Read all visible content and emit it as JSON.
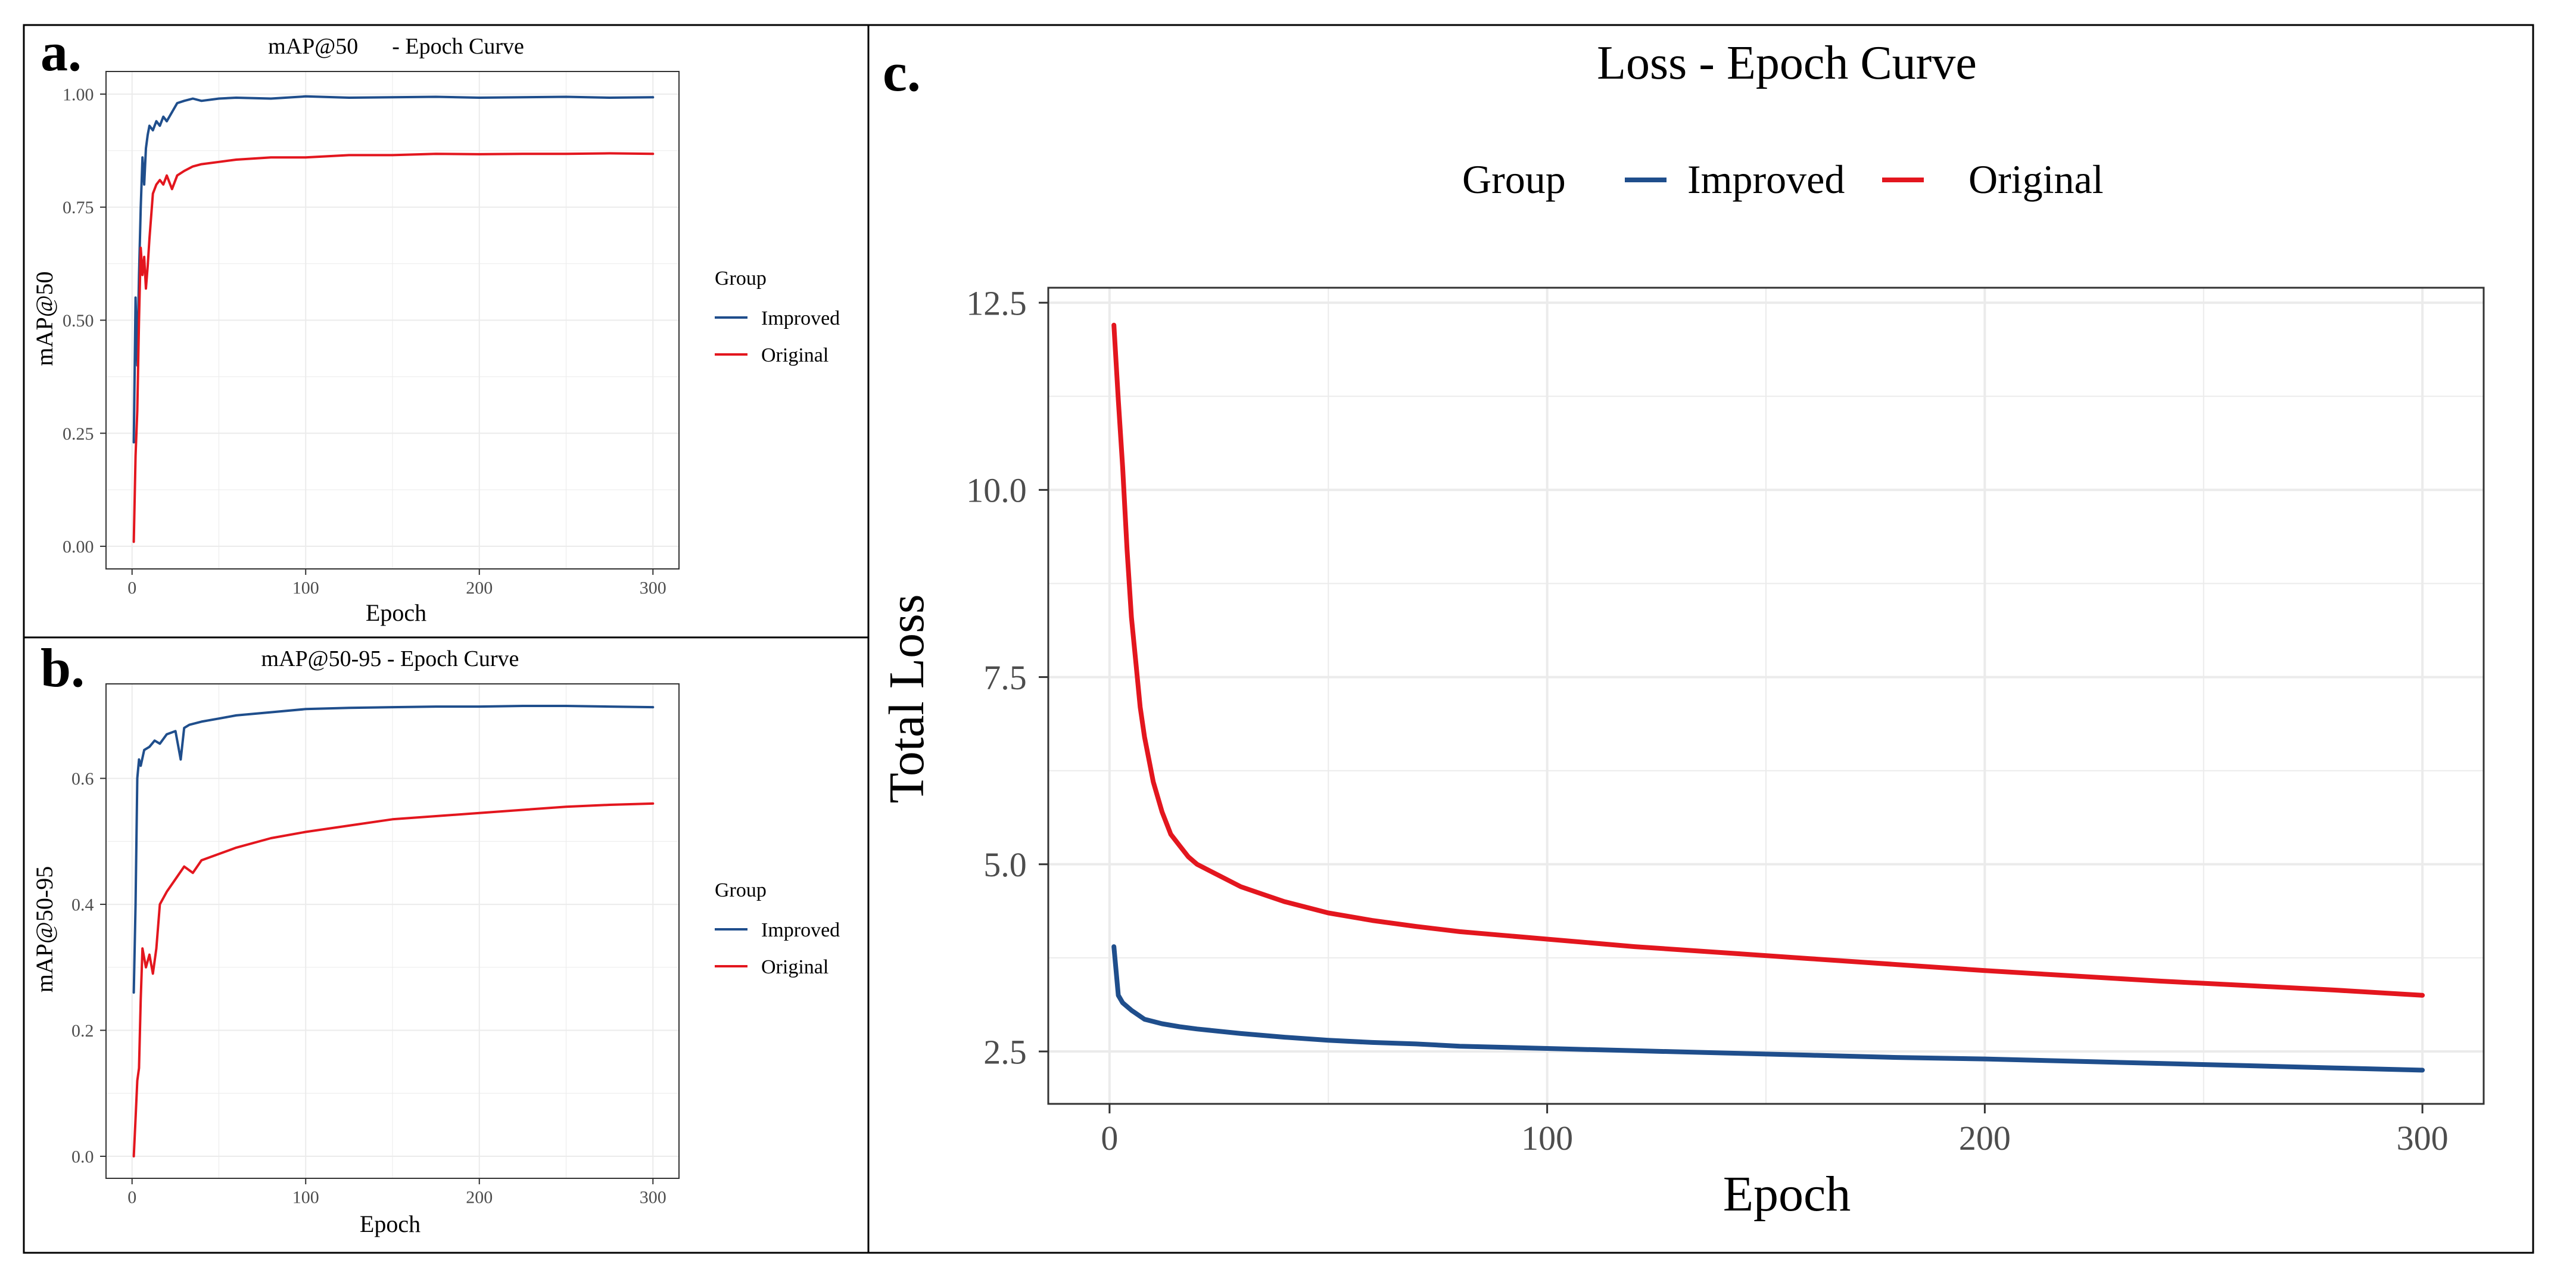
{
  "colors": {
    "improved": "#1f4e8c",
    "original": "#e3161e",
    "grid": "#ebebeb",
    "axis": "#333333",
    "frame": "#000000",
    "background": "#ffffff"
  },
  "panels": {
    "a": {
      "label": "a.",
      "title": "mAP@50      - Epoch Curve",
      "legend_title": "Group"
    },
    "b": {
      "label": "b.",
      "title": "mAP@50-95 - Epoch Curve",
      "legend_title": "Group"
    },
    "c": {
      "label": "c.",
      "title": "Loss - Epoch Curve",
      "legend_title": "Group"
    }
  },
  "chart_data": [
    {
      "id": "a",
      "type": "line",
      "title": "mAP@50      - Epoch Curve",
      "xlabel": "Epoch",
      "ylabel": "mAP@50",
      "xlim": [
        -15,
        315
      ],
      "ylim": [
        -0.05,
        1.05
      ],
      "xticks": [
        0,
        100,
        200,
        300
      ],
      "yticks": [
        0.0,
        0.25,
        0.5,
        0.75,
        1.0
      ],
      "ytick_labels": [
        "0.00",
        "0.25",
        "0.50",
        "0.75",
        "1.00"
      ],
      "grid": true,
      "legend": {
        "title": "Group",
        "position": "right"
      },
      "series": [
        {
          "name": "Improved",
          "color": "#1f4e8c",
          "x": [
            1,
            2,
            3,
            4,
            5,
            6,
            7,
            8,
            9,
            10,
            12,
            14,
            16,
            18,
            20,
            23,
            26,
            30,
            35,
            40,
            50,
            60,
            80,
            100,
            125,
            150,
            175,
            200,
            225,
            250,
            275,
            300
          ],
          "y": [
            0.23,
            0.55,
            0.4,
            0.6,
            0.75,
            0.86,
            0.8,
            0.88,
            0.91,
            0.93,
            0.92,
            0.94,
            0.93,
            0.95,
            0.94,
            0.96,
            0.98,
            0.985,
            0.99,
            0.985,
            0.99,
            0.992,
            0.99,
            0.995,
            0.992,
            0.993,
            0.994,
            0.992,
            0.993,
            0.994,
            0.992,
            0.993
          ]
        },
        {
          "name": "Original",
          "color": "#e3161e",
          "x": [
            1,
            2,
            3,
            4,
            5,
            6,
            7,
            8,
            9,
            10,
            12,
            14,
            16,
            18,
            20,
            23,
            26,
            30,
            35,
            40,
            50,
            60,
            80,
            100,
            125,
            150,
            175,
            200,
            225,
            250,
            275,
            300
          ],
          "y": [
            0.01,
            0.2,
            0.3,
            0.5,
            0.66,
            0.6,
            0.64,
            0.57,
            0.62,
            0.68,
            0.78,
            0.8,
            0.81,
            0.8,
            0.82,
            0.79,
            0.82,
            0.83,
            0.84,
            0.845,
            0.85,
            0.855,
            0.86,
            0.86,
            0.865,
            0.865,
            0.868,
            0.867,
            0.868,
            0.868,
            0.869,
            0.868
          ]
        }
      ]
    },
    {
      "id": "b",
      "type": "line",
      "title": "mAP@50-95 - Epoch Curve",
      "xlabel": "Epoch",
      "ylabel": "mAP@50-95",
      "xlim": [
        -15,
        315
      ],
      "ylim": [
        -0.035,
        0.75
      ],
      "xticks": [
        0,
        100,
        200,
        300
      ],
      "yticks": [
        0.0,
        0.2,
        0.4,
        0.6
      ],
      "ytick_labels": [
        "0.0",
        "0.2",
        "0.4",
        "0.6"
      ],
      "grid": true,
      "legend": {
        "title": "Group",
        "position": "right"
      },
      "series": [
        {
          "name": "Improved",
          "color": "#1f4e8c",
          "x": [
            1,
            2,
            3,
            4,
            5,
            7,
            10,
            13,
            16,
            20,
            25,
            28,
            30,
            33,
            40,
            50,
            60,
            80,
            100,
            125,
            150,
            175,
            200,
            225,
            250,
            275,
            300
          ],
          "y": [
            0.26,
            0.4,
            0.6,
            0.63,
            0.62,
            0.645,
            0.65,
            0.66,
            0.655,
            0.67,
            0.675,
            0.63,
            0.68,
            0.685,
            0.69,
            0.695,
            0.7,
            0.705,
            0.71,
            0.712,
            0.713,
            0.714,
            0.714,
            0.715,
            0.715,
            0.714,
            0.713
          ]
        },
        {
          "name": "Original",
          "color": "#e3161e",
          "x": [
            1,
            2,
            3,
            4,
            5,
            6,
            8,
            10,
            12,
            14,
            16,
            20,
            25,
            30,
            35,
            40,
            50,
            60,
            80,
            100,
            125,
            150,
            175,
            200,
            225,
            250,
            275,
            300
          ],
          "y": [
            0.0,
            0.06,
            0.12,
            0.14,
            0.25,
            0.33,
            0.3,
            0.32,
            0.29,
            0.33,
            0.4,
            0.42,
            0.44,
            0.46,
            0.45,
            0.47,
            0.48,
            0.49,
            0.505,
            0.515,
            0.525,
            0.535,
            0.54,
            0.545,
            0.55,
            0.555,
            0.558,
            0.56
          ]
        }
      ]
    },
    {
      "id": "c",
      "type": "line",
      "title": "Loss - Epoch Curve",
      "xlabel": "Epoch",
      "ylabel": "Total Loss",
      "xlim": [
        -14,
        314
      ],
      "ylim": [
        1.8,
        12.7
      ],
      "xticks": [
        0,
        100,
        200,
        300
      ],
      "yticks": [
        2.5,
        5.0,
        7.5,
        10.0,
        12.5
      ],
      "ytick_labels": [
        "2.5",
        "5.0",
        "7.5",
        "10.0",
        "12.5"
      ],
      "grid": true,
      "legend": {
        "title": "Group",
        "position": "top"
      },
      "series": [
        {
          "name": "Improved",
          "color": "#1f4e8c",
          "x": [
            1,
            2,
            3,
            5,
            8,
            12,
            16,
            20,
            30,
            40,
            50,
            60,
            70,
            80,
            100,
            120,
            140,
            160,
            180,
            200,
            220,
            240,
            260,
            280,
            300
          ],
          "y": [
            3.9,
            3.25,
            3.15,
            3.05,
            2.93,
            2.87,
            2.83,
            2.8,
            2.74,
            2.69,
            2.65,
            2.62,
            2.6,
            2.57,
            2.54,
            2.51,
            2.48,
            2.45,
            2.42,
            2.4,
            2.37,
            2.34,
            2.31,
            2.28,
            2.25
          ]
        },
        {
          "name": "Original",
          "color": "#e3161e",
          "x": [
            1,
            2,
            3,
            4,
            5,
            6,
            7,
            8,
            10,
            12,
            14,
            16,
            18,
            20,
            25,
            30,
            35,
            40,
            50,
            60,
            70,
            80,
            90,
            100,
            120,
            140,
            160,
            180,
            200,
            220,
            240,
            260,
            280,
            300
          ],
          "y": [
            12.2,
            11.2,
            10.3,
            9.2,
            8.3,
            7.7,
            7.1,
            6.7,
            6.1,
            5.7,
            5.4,
            5.25,
            5.1,
            5.0,
            4.85,
            4.7,
            4.6,
            4.5,
            4.35,
            4.25,
            4.17,
            4.1,
            4.05,
            4.0,
            3.9,
            3.82,
            3.74,
            3.66,
            3.58,
            3.51,
            3.44,
            3.38,
            3.32,
            3.25
          ]
        }
      ]
    }
  ]
}
